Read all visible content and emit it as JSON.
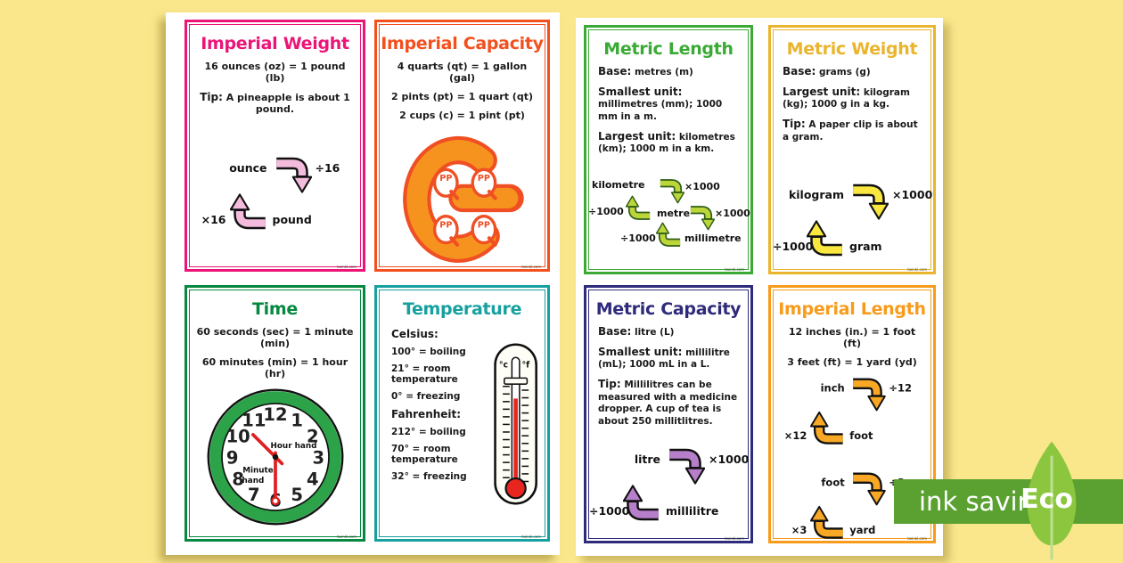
{
  "background_color": "#FAE78C",
  "watermark": "twinkl.com",
  "cards": {
    "imperial_weight": {
      "title": "Imperial Weight",
      "color": "#EC1577",
      "fact": "16 ounces (oz) = 1 pound (lb)",
      "tip_label": "Tip:",
      "tip": "A pineapple is about 1 pound.",
      "loop": {
        "top": "ounce",
        "top_op": "÷16",
        "bottom": "pound",
        "bottom_op": "×16"
      },
      "arrow_color": "#F3BCDC"
    },
    "imperial_capacity": {
      "title": "Imperial Capacity",
      "color": "#F3501E",
      "facts": [
        "4 quarts (qt) = 1 gallon (gal)",
        "2 pints (pt) = 1 quart (qt)",
        "2 cups (c) = 1 pint (pt)"
      ],
      "g_fill": "#F6921E",
      "g_outline": "#F04E23",
      "p_letters": "PP"
    },
    "metric_length": {
      "title": "Metric Length",
      "color": "#3AAA35",
      "facts": [
        {
          "label": "Base:",
          "text": "metres (m)"
        },
        {
          "label": "Smallest unit:",
          "text": "millimetres (mm); 1000 mm in a m."
        },
        {
          "label": "Largest unit:",
          "text": "kilometres (km); 1000 m in a km."
        }
      ],
      "chain": {
        "unit_top": "kilometre",
        "unit_mid": "metre",
        "unit_bottom": "millimetre",
        "down_op": "×1000",
        "up_op": "÷1000"
      },
      "arrow_color": "#BCD63A"
    },
    "metric_weight": {
      "title": "Metric Weight",
      "color": "#EAB42C",
      "facts": [
        {
          "label": "Base:",
          "text": "grams (g)"
        },
        {
          "label": "Largest unit:",
          "text": "kilogram (kg); 1000 g in a kg."
        },
        {
          "label": "Tip:",
          "text": "A paper clip is about a gram."
        }
      ],
      "loop": {
        "top": "kilogram",
        "top_op": "×1000",
        "bottom": "gram",
        "bottom_op": "÷1000"
      },
      "arrow_color": "#F9E73F"
    },
    "time": {
      "title": "Time",
      "color": "#068840",
      "facts": [
        "60 seconds (sec) = 1 minute (min)",
        "60 minutes (min) = 1 hour (hr)"
      ],
      "clock": {
        "numbers": [
          "12",
          "1",
          "2",
          "3",
          "4",
          "5",
          "6",
          "7",
          "8",
          "9",
          "10",
          "11"
        ],
        "hour_label": "Hour hand",
        "minute_label_line1": "Minute",
        "minute_label_line2": "hand",
        "ring_color": "#2CA249",
        "hand_color": "#E02020"
      }
    },
    "temperature": {
      "title": "Temperature",
      "color": "#16A0A0",
      "celsius_label": "Celsius:",
      "celsius": [
        "100° = boiling",
        "21° = room temperature",
        "0° = freezing"
      ],
      "fahrenheit_label": "Fahrenheit:",
      "fahrenheit": [
        "212° = boiling",
        "70° = room temperature",
        "32° = freezing"
      ],
      "thermometer": {
        "c_label": "°c",
        "f_label": "°f"
      }
    },
    "metric_capacity": {
      "title": "Metric Capacity",
      "color": "#2F2B7B",
      "facts": [
        {
          "label": "Base:",
          "text": "litre (L)"
        },
        {
          "label": "Smallest unit:",
          "text": "millilitre (mL); 1000 mL in a L."
        },
        {
          "label": "Tip:",
          "text": "Millilitres can be measured with a medicine dropper. A cup of tea is about 250 millitlitres."
        }
      ],
      "loop": {
        "top": "litre",
        "top_op": "×1000",
        "bottom": "millilitre",
        "bottom_op": "÷1000"
      },
      "arrow_color": "#B77FC9"
    },
    "imperial_length": {
      "title": "Imperial Length",
      "color": "#F89B1B",
      "facts": [
        "12 inches (in.) = 1 foot (ft)",
        "3 feet (ft) = 1 yard (yd)"
      ],
      "loops": [
        {
          "top": "inch",
          "top_op": "÷12",
          "bottom": "foot",
          "bottom_op": "×12"
        },
        {
          "top": "foot",
          "top_op": "÷3",
          "bottom": "yard",
          "bottom_op": "×3"
        }
      ],
      "arrow_color": "#F9A825"
    }
  },
  "eco_badge": {
    "label": "ink saving",
    "eco": "Eco",
    "bar_color": "#5AA131",
    "leaf_color": "#8CC63E"
  }
}
